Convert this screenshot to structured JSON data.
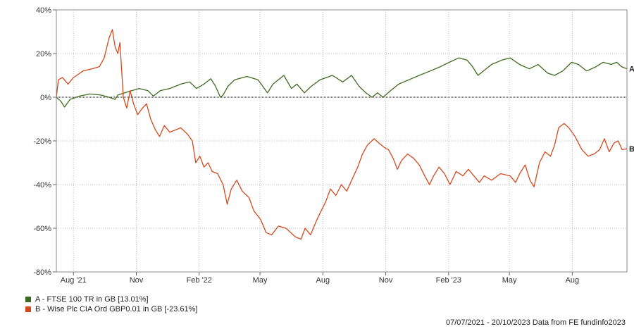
{
  "chart_data": {
    "type": "line",
    "title": "",
    "xlabel": "",
    "ylabel": "",
    "ylim": [
      -80,
      40
    ],
    "xlim": [
      "2021-07-07",
      "2023-10-20"
    ],
    "grid": true,
    "y_ticks": [
      40,
      20,
      0,
      -20,
      -40,
      -60,
      -80
    ],
    "y_tick_labels": [
      "40%",
      "20%",
      "0%",
      "-20%",
      "-40%",
      "-60%",
      "-80%"
    ],
    "x_ticks": [
      {
        "date": "2021-08-01",
        "label": "Aug '21"
      },
      {
        "date": "2021-11-01",
        "label": "Nov"
      },
      {
        "date": "2022-02-01",
        "label": "Feb '22"
      },
      {
        "date": "2022-05-01",
        "label": "May"
      },
      {
        "date": "2022-08-01",
        "label": "Aug"
      },
      {
        "date": "2022-11-01",
        "label": "Nov"
      },
      {
        "date": "2023-02-01",
        "label": "Feb '23"
      },
      {
        "date": "2023-05-01",
        "label": "May"
      },
      {
        "date": "2023-08-01",
        "label": "Aug"
      }
    ],
    "series": [
      {
        "name": "A - FTSE 100 TR in GB [13.01%]",
        "end_label": "A",
        "color": "#3d6b1f",
        "points": [
          [
            "2021-07-07",
            0
          ],
          [
            "2021-07-14",
            -2
          ],
          [
            "2021-07-19",
            -4.5
          ],
          [
            "2021-07-27",
            -1
          ],
          [
            "2021-08-10",
            0.5
          ],
          [
            "2021-08-25",
            1.5
          ],
          [
            "2021-09-10",
            1
          ],
          [
            "2021-09-22",
            0
          ],
          [
            "2021-10-01",
            -1
          ],
          [
            "2021-10-05",
            1
          ],
          [
            "2021-10-20",
            2.5
          ],
          [
            "2021-11-05",
            4
          ],
          [
            "2021-11-18",
            3
          ],
          [
            "2021-11-26",
            0.5
          ],
          [
            "2021-12-06",
            3
          ],
          [
            "2021-12-20",
            4
          ],
          [
            "2022-01-05",
            6
          ],
          [
            "2022-01-18",
            7
          ],
          [
            "2022-01-28",
            4
          ],
          [
            "2022-02-08",
            6
          ],
          [
            "2022-02-18",
            8.5
          ],
          [
            "2022-02-25",
            5
          ],
          [
            "2022-03-04",
            0
          ],
          [
            "2022-03-08",
            1
          ],
          [
            "2022-03-15",
            5
          ],
          [
            "2022-03-25",
            8
          ],
          [
            "2022-04-12",
            9.5
          ],
          [
            "2022-04-28",
            8
          ],
          [
            "2022-05-05",
            5
          ],
          [
            "2022-05-12",
            2
          ],
          [
            "2022-05-20",
            6
          ],
          [
            "2022-06-05",
            10
          ],
          [
            "2022-06-16",
            4
          ],
          [
            "2022-06-24",
            6
          ],
          [
            "2022-07-05",
            2
          ],
          [
            "2022-07-15",
            5
          ],
          [
            "2022-07-28",
            8
          ],
          [
            "2022-08-15",
            10
          ],
          [
            "2022-08-30",
            7
          ],
          [
            "2022-09-12",
            10
          ],
          [
            "2022-09-23",
            5
          ],
          [
            "2022-10-03",
            2
          ],
          [
            "2022-10-12",
            0
          ],
          [
            "2022-10-20",
            2
          ],
          [
            "2022-10-28",
            0
          ],
          [
            "2022-11-08",
            3
          ],
          [
            "2022-11-20",
            6
          ],
          [
            "2022-12-05",
            8
          ],
          [
            "2022-12-20",
            10
          ],
          [
            "2023-01-05",
            12
          ],
          [
            "2023-01-20",
            14
          ],
          [
            "2023-02-02",
            16
          ],
          [
            "2023-02-16",
            18
          ],
          [
            "2023-02-28",
            17
          ],
          [
            "2023-03-08",
            14
          ],
          [
            "2023-03-16",
            10
          ],
          [
            "2023-03-24",
            12
          ],
          [
            "2023-04-05",
            15
          ],
          [
            "2023-04-20",
            17
          ],
          [
            "2023-05-02",
            18
          ],
          [
            "2023-05-16",
            15
          ],
          [
            "2023-05-30",
            13
          ],
          [
            "2023-06-12",
            15
          ],
          [
            "2023-06-26",
            11
          ],
          [
            "2023-07-06",
            10
          ],
          [
            "2023-07-18",
            12
          ],
          [
            "2023-07-31",
            16
          ],
          [
            "2023-08-10",
            15
          ],
          [
            "2023-08-22",
            12
          ],
          [
            "2023-09-05",
            14
          ],
          [
            "2023-09-15",
            16
          ],
          [
            "2023-09-27",
            15
          ],
          [
            "2023-10-05",
            16
          ],
          [
            "2023-10-12",
            14
          ],
          [
            "2023-10-20",
            13.01
          ]
        ]
      },
      {
        "name": "B - Wise Plc CIA Ord GBP0.01 in GB [-23.61%]",
        "end_label": "B",
        "color": "#d4491d",
        "points": [
          [
            "2021-07-07",
            0
          ],
          [
            "2021-07-10",
            8
          ],
          [
            "2021-07-16",
            9
          ],
          [
            "2021-07-24",
            6
          ],
          [
            "2021-08-01",
            9
          ],
          [
            "2021-08-15",
            12
          ],
          [
            "2021-08-28",
            13
          ],
          [
            "2021-09-08",
            14
          ],
          [
            "2021-09-15",
            18
          ],
          [
            "2021-09-22",
            27
          ],
          [
            "2021-09-27",
            31
          ],
          [
            "2021-10-01",
            23
          ],
          [
            "2021-10-05",
            20
          ],
          [
            "2021-10-08",
            25
          ],
          [
            "2021-10-13",
            0
          ],
          [
            "2021-10-18",
            -5
          ],
          [
            "2021-10-23",
            3
          ],
          [
            "2021-10-28",
            -3
          ],
          [
            "2021-11-03",
            -8
          ],
          [
            "2021-11-10",
            -5
          ],
          [
            "2021-11-16",
            -3
          ],
          [
            "2021-11-22",
            -10
          ],
          [
            "2021-11-29",
            -15
          ],
          [
            "2021-12-05",
            -18
          ],
          [
            "2021-12-12",
            -13
          ],
          [
            "2021-12-20",
            -16
          ],
          [
            "2022-01-05",
            -14
          ],
          [
            "2022-01-15",
            -17
          ],
          [
            "2022-01-22",
            -20
          ],
          [
            "2022-01-27",
            -30
          ],
          [
            "2022-02-02",
            -27
          ],
          [
            "2022-02-08",
            -32
          ],
          [
            "2022-02-14",
            -30
          ],
          [
            "2022-02-20",
            -34
          ],
          [
            "2022-02-28",
            -35
          ],
          [
            "2022-03-08",
            -40
          ],
          [
            "2022-03-14",
            -49
          ],
          [
            "2022-03-20",
            -42
          ],
          [
            "2022-03-28",
            -38
          ],
          [
            "2022-04-05",
            -43
          ],
          [
            "2022-04-15",
            -46
          ],
          [
            "2022-04-22",
            -52
          ],
          [
            "2022-05-02",
            -56
          ],
          [
            "2022-05-10",
            -62
          ],
          [
            "2022-05-18",
            -63
          ],
          [
            "2022-05-28",
            -59
          ],
          [
            "2022-06-08",
            -60
          ],
          [
            "2022-06-15",
            -62
          ],
          [
            "2022-06-22",
            -64
          ],
          [
            "2022-06-30",
            -65
          ],
          [
            "2022-07-06",
            -60
          ],
          [
            "2022-07-14",
            -63
          ],
          [
            "2022-07-22",
            -57
          ],
          [
            "2022-07-28",
            -53
          ],
          [
            "2022-08-05",
            -48
          ],
          [
            "2022-08-12",
            -42
          ],
          [
            "2022-08-20",
            -45
          ],
          [
            "2022-08-28",
            -40
          ],
          [
            "2022-09-05",
            -43
          ],
          [
            "2022-09-15",
            -36
          ],
          [
            "2022-09-21",
            -32
          ],
          [
            "2022-09-28",
            -26
          ],
          [
            "2022-10-05",
            -22
          ],
          [
            "2022-10-15",
            -19
          ],
          [
            "2022-10-22",
            -21
          ],
          [
            "2022-10-30",
            -23
          ],
          [
            "2022-11-05",
            -24
          ],
          [
            "2022-11-12",
            -28
          ],
          [
            "2022-11-18",
            -33
          ],
          [
            "2022-11-24",
            -29
          ],
          [
            "2022-12-03",
            -26
          ],
          [
            "2022-12-12",
            -28
          ],
          [
            "2022-12-20",
            -31
          ],
          [
            "2022-12-28",
            -36
          ],
          [
            "2023-01-04",
            -40
          ],
          [
            "2023-01-10",
            -36
          ],
          [
            "2023-01-18",
            -32
          ],
          [
            "2023-01-26",
            -35
          ],
          [
            "2023-02-03",
            -40
          ],
          [
            "2023-02-12",
            -34
          ],
          [
            "2023-02-22",
            -36
          ],
          [
            "2023-03-02",
            -33
          ],
          [
            "2023-03-10",
            -36
          ],
          [
            "2023-03-18",
            -39
          ],
          [
            "2023-03-25",
            -36
          ],
          [
            "2023-04-05",
            -38
          ],
          [
            "2023-04-18",
            -35
          ],
          [
            "2023-05-02",
            -36
          ],
          [
            "2023-05-10",
            -39
          ],
          [
            "2023-05-16",
            -35
          ],
          [
            "2023-05-24",
            -31
          ],
          [
            "2023-05-31",
            -38
          ],
          [
            "2023-06-06",
            -41
          ],
          [
            "2023-06-14",
            -30
          ],
          [
            "2023-06-22",
            -25
          ],
          [
            "2023-06-30",
            -27
          ],
          [
            "2023-07-06",
            -22
          ],
          [
            "2023-07-12",
            -14
          ],
          [
            "2023-07-20",
            -12
          ],
          [
            "2023-07-27",
            -14
          ],
          [
            "2023-08-05",
            -18
          ],
          [
            "2023-08-15",
            -24
          ],
          [
            "2023-08-24",
            -27
          ],
          [
            "2023-09-02",
            -26
          ],
          [
            "2023-09-10",
            -24
          ],
          [
            "2023-09-17",
            -19
          ],
          [
            "2023-09-24",
            -25
          ],
          [
            "2023-10-01",
            -21
          ],
          [
            "2023-10-07",
            -20
          ],
          [
            "2023-10-13",
            -24
          ],
          [
            "2023-10-20",
            -23.61
          ]
        ]
      }
    ],
    "legend_position": "bottom-left"
  },
  "footer": {
    "date_range": "07/07/2021 - 20/10/2023",
    "source": "Data from FE fundinfo2023"
  }
}
